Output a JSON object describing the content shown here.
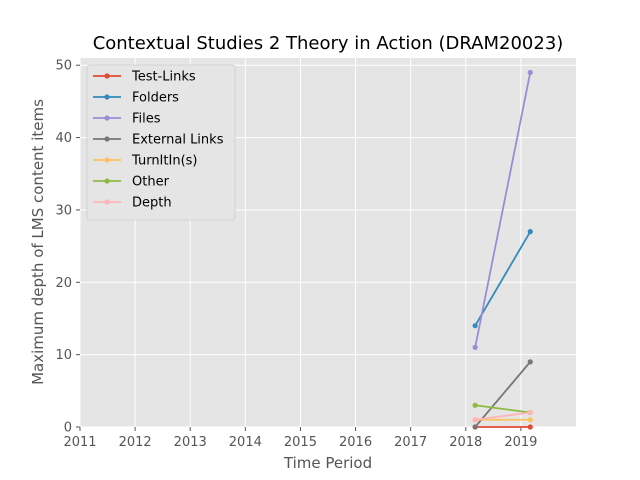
{
  "chart_data": {
    "type": "line",
    "title": "Contextual Studies 2 Theory in Action (DRAM20023)",
    "xlabel": "Time Period",
    "ylabel": "Maximum depth of LMS content items",
    "xlim": [
      2011,
      2020
    ],
    "ylim": [
      0,
      51
    ],
    "xticks": [
      "2011",
      "2012",
      "2013",
      "2014",
      "2015",
      "2016",
      "2017",
      "2018",
      "2019"
    ],
    "yticks": [
      "0",
      "10",
      "20",
      "30",
      "40",
      "50"
    ],
    "grid": true,
    "legend_position": "upper-left",
    "x": [
      "2018",
      "2019"
    ],
    "series": [
      {
        "name": "Test-Links",
        "color": "#E24A33",
        "values": [
          0,
          0
        ]
      },
      {
        "name": "Folders",
        "color": "#348ABD",
        "values": [
          14,
          27
        ]
      },
      {
        "name": "Files",
        "color": "#988ED5",
        "values": [
          11,
          49
        ]
      },
      {
        "name": "External Links",
        "color": "#777777",
        "values": [
          0,
          9
        ]
      },
      {
        "name": "TurnItIn(s)",
        "color": "#FBC15E",
        "values": [
          1,
          1
        ]
      },
      {
        "name": "Other",
        "color": "#8EBA42",
        "values": [
          3,
          2
        ]
      },
      {
        "name": "Depth",
        "color": "#FFB5B8",
        "values": [
          1,
          2
        ]
      }
    ]
  }
}
